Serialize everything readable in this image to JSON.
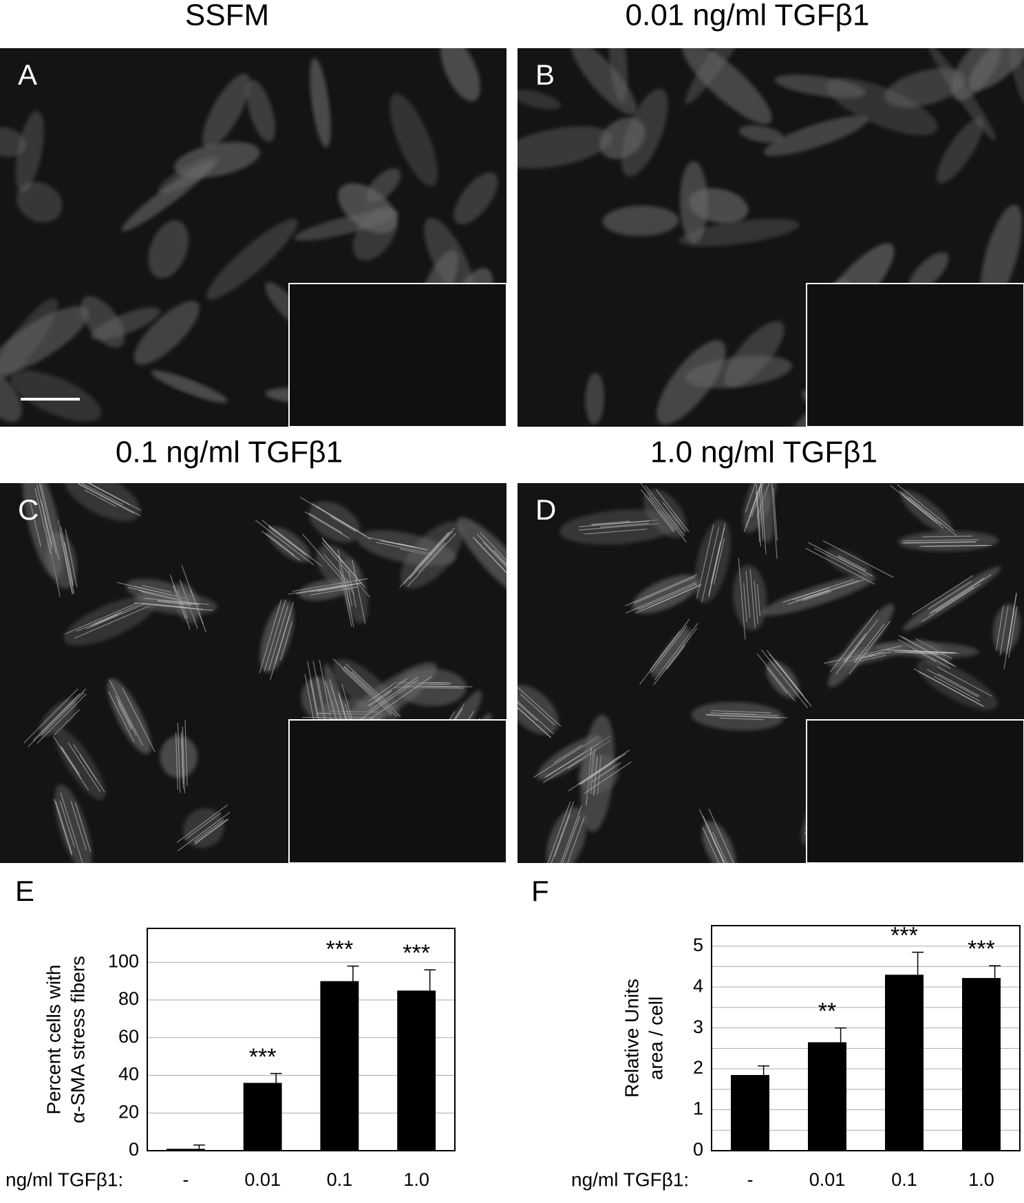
{
  "panels": [
    {
      "title": "SSFM",
      "letter": "A"
    },
    {
      "title": "0.01 ng/ml TGFβ1",
      "letter": "B"
    },
    {
      "title": "0.1 ng/ml TGFβ1",
      "letter": "C"
    },
    {
      "title": "1.0 ng/ml TGFβ1",
      "letter": "D"
    }
  ],
  "chart_data": [
    {
      "type": "bar",
      "letter": "E",
      "ylabel": [
        "Percent cells with",
        "α-SMA stress fibers"
      ],
      "xlabel": "ng/ml TGFβ1:",
      "categories": [
        "-",
        "0.01",
        "0.1",
        "1.0"
      ],
      "values": [
        1,
        36,
        90,
        85
      ],
      "errors": [
        2,
        5,
        8,
        11
      ],
      "annotations": [
        null,
        "***",
        "***",
        "***"
      ],
      "color": "#000000",
      "ylim": [
        0,
        118
      ],
      "yticks": [
        0,
        20,
        40,
        60,
        80,
        100
      ],
      "grid": true
    },
    {
      "type": "bar",
      "letter": "F",
      "ylabel": [
        "Relative Units",
        "area / cell"
      ],
      "xlabel": "ng/ml TGFβ1:",
      "categories": [
        "-",
        "0.01",
        "0.1",
        "1.0"
      ],
      "values": [
        1.85,
        2.65,
        4.3,
        4.22
      ],
      "errors": [
        0.22,
        0.35,
        0.55,
        0.3
      ],
      "annotations": [
        null,
        "**",
        "***",
        "***"
      ],
      "color": "#000000",
      "ylim": [
        0,
        5.5
      ],
      "yticks": [
        0,
        1,
        2,
        3,
        4,
        5
      ],
      "minor_grid": [
        0.5,
        1.5,
        2.5,
        3.5,
        4.5
      ],
      "grid": true
    }
  ]
}
